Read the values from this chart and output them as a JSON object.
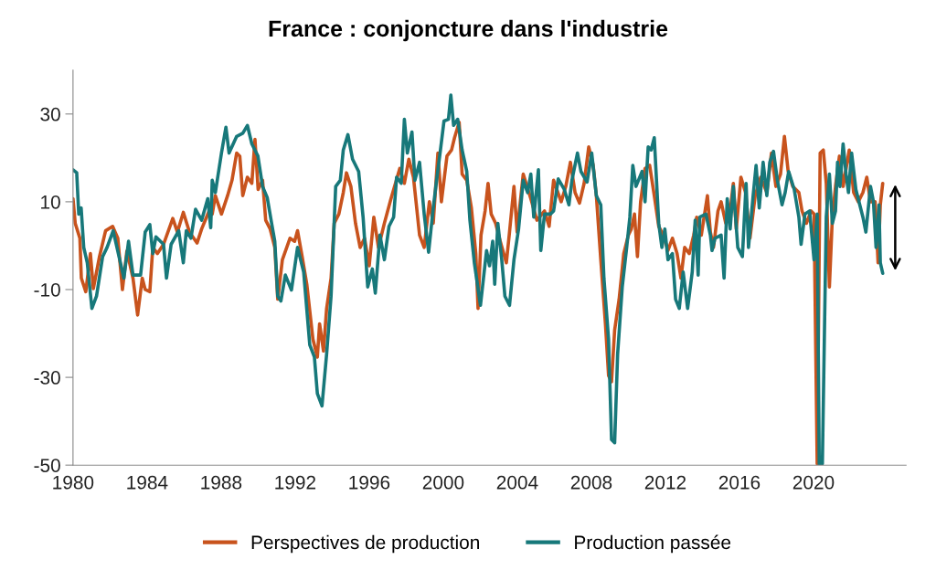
{
  "chart_data": {
    "type": "line",
    "title": "France : conjoncture dans l'industrie",
    "xlim": [
      1980,
      2025
    ],
    "xticks": [
      1980,
      1984,
      1988,
      1992,
      1996,
      2000,
      2004,
      2008,
      2012,
      2016,
      2020
    ],
    "ylim": [
      -50,
      40
    ],
    "yticks": [
      -50,
      -30,
      -10,
      10,
      30
    ],
    "grid": false,
    "legend": "bottom",
    "series": [
      {
        "name": "Perspectives de production",
        "color": "#c8531d",
        "x": [
          1980.0,
          1980.12,
          1980.37,
          1980.45,
          1980.69,
          1980.94,
          1981.1,
          1981.43,
          1981.76,
          1982.14,
          1982.42,
          1982.67,
          1982.91,
          1983.24,
          1983.49,
          1983.74,
          1983.9,
          1984.15,
          1984.31,
          1984.56,
          1984.89,
          1985.39,
          1985.64,
          1985.96,
          1986.29,
          1986.7,
          1986.95,
          1987.36,
          1987.52,
          1987.69,
          1988.02,
          1988.35,
          1988.59,
          1988.84,
          1989.01,
          1989.17,
          1989.42,
          1989.66,
          1989.83,
          1990.0,
          1990.24,
          1990.41,
          1990.65,
          1990.9,
          1991.06,
          1991.31,
          1991.72,
          1991.97,
          1992.13,
          1992.38,
          1992.63,
          1992.96,
          1993.2,
          1993.32,
          1993.53,
          1993.7,
          1993.94,
          1994.11,
          1994.36,
          1994.6,
          1994.77,
          1995.01,
          1995.26,
          1995.51,
          1995.75,
          1996.0,
          1996.25,
          1996.5,
          1996.82,
          1997.15,
          1997.65,
          1997.9,
          1998.14,
          1998.39,
          1998.72,
          1998.97,
          1999.25,
          1999.46,
          1999.71,
          1999.9,
          2000.2,
          2000.45,
          2000.61,
          2000.86,
          2001.02,
          2001.27,
          2001.52,
          2001.76,
          2001.88,
          2002.04,
          2002.26,
          2002.42,
          2002.59,
          2002.83,
          2003.08,
          2003.41,
          2003.58,
          2003.82,
          2003.99,
          2004.32,
          2004.73,
          2005.06,
          2005.47,
          2005.72,
          2005.96,
          2006.37,
          2006.62,
          2006.87,
          2007.12,
          2007.36,
          2007.61,
          2007.86,
          2008.1,
          2008.27,
          2008.51,
          2008.76,
          2008.93,
          2009.09,
          2009.26,
          2009.5,
          2009.75,
          2010.0,
          2010.16,
          2010.33,
          2010.49,
          2010.66,
          2010.9,
          2011.15,
          2011.4,
          2011.64,
          2011.89,
          2012.14,
          2012.38,
          2012.63,
          2012.84,
          2013.04,
          2013.29,
          2013.53,
          2013.69,
          2013.94,
          2014.27,
          2014.43,
          2014.6,
          2014.84,
          2015.01,
          2015.26,
          2015.5,
          2015.67,
          2015.83,
          2016.08,
          2016.33,
          2016.57,
          2016.85,
          2017.15,
          2017.48,
          2017.73,
          2017.97,
          2018.22,
          2018.43,
          2018.63,
          2018.88,
          2019.21,
          2019.38,
          2019.62,
          2019.87,
          2020.03,
          2020.2,
          2020.36,
          2020.53,
          2020.69,
          2020.86,
          2021.02,
          2021.19,
          2021.4,
          2021.6,
          2021.93,
          2022.17,
          2022.42,
          2022.67,
          2022.88,
          2023.08,
          2023.33,
          2023.49,
          2023.61,
          2023.74
        ],
        "values": [
          10.7,
          5.1,
          1.7,
          -7.4,
          -10.5,
          -1.8,
          -9.8,
          -2.5,
          3.4,
          4.4,
          1.7,
          -10,
          -1.2,
          -7.4,
          -15.8,
          -7.4,
          -10,
          -10.5,
          -0.4,
          -1.8,
          0.3,
          6.2,
          3.1,
          7.6,
          3.1,
          0.6,
          3.8,
          8,
          7.2,
          11.4,
          7.2,
          11.4,
          14.9,
          21.1,
          20.4,
          11.4,
          15.6,
          14.2,
          24.2,
          12.8,
          14.9,
          5.8,
          3.8,
          -0.4,
          -12.2,
          -3.2,
          1.7,
          1,
          3.4,
          -2.5,
          -8.8,
          -21.3,
          -25.4,
          -17.8,
          -24,
          -14.3,
          -7.4,
          5.1,
          7.2,
          12.1,
          16.6,
          13.5,
          5.1,
          -0.4,
          1.7,
          -4.6,
          6.5,
          -0.4,
          5.1,
          10.3,
          17.6,
          14.2,
          19.7,
          15.6,
          2.4,
          -0.4,
          10,
          5.1,
          21.1,
          10,
          20.4,
          21.8,
          24.6,
          28.1,
          16.3,
          14.9,
          8.6,
          -1.8,
          -14.3,
          2.4,
          7.9,
          14.2,
          7.2,
          5.1,
          1,
          -3.9,
          3.1,
          13.5,
          3.1,
          16.3,
          10.7,
          5.8,
          7.9,
          4.4,
          14.9,
          10,
          13.5,
          19,
          12.1,
          9.7,
          14.2,
          22.5,
          18.3,
          11.4,
          -3.2,
          -17.8,
          -29.6,
          -31,
          -19.2,
          -12.2,
          -1.8,
          2.4,
          3.8,
          7.2,
          -2.5,
          10,
          17.6,
          18.3,
          11.4,
          4.4,
          2.4,
          -1.1,
          1.7,
          -1.8,
          -7.4,
          -0.4,
          -1.8,
          2.4,
          6.5,
          2.4,
          11.4,
          3.1,
          -0.4,
          7.9,
          10,
          5.1,
          7.9,
          14.2,
          3.8,
          15.6,
          12.1,
          1.7,
          11.4,
          15.6,
          12.1,
          21.1,
          13.5,
          16.3,
          24.9,
          17,
          13.5,
          12.1,
          7.9,
          5.1,
          7.9,
          7.2,
          -49.7,
          21.1,
          21.8,
          14.2,
          -9.4,
          6.5,
          13.5,
          20.4,
          13.5,
          21.8,
          12.1,
          10,
          12.1,
          15.6,
          10,
          10,
          -3.9,
          9.3,
          14.2
        ]
      },
      {
        "name": "Production passée",
        "color": "#17787a",
        "x": [
          1980.0,
          1980.2,
          1980.31,
          1980.44,
          1980.58,
          1980.77,
          1981.02,
          1981.27,
          1981.6,
          1981.84,
          1982.17,
          1982.75,
          1983.0,
          1983.24,
          1983.65,
          1983.9,
          1984.15,
          1984.31,
          1984.48,
          1984.89,
          1985.05,
          1985.3,
          1985.71,
          1985.96,
          1986.12,
          1986.37,
          1986.62,
          1986.95,
          1987.28,
          1987.44,
          1987.52,
          1987.69,
          1988.02,
          1988.26,
          1988.43,
          1988.84,
          1989.17,
          1989.42,
          1989.66,
          1989.99,
          1990.24,
          1990.49,
          1990.73,
          1990.9,
          1991.06,
          1991.23,
          1991.47,
          1991.8,
          1992.13,
          1992.46,
          1992.79,
          1993.04,
          1993.2,
          1993.45,
          1993.7,
          1993.94,
          1994.19,
          1994.44,
          1994.6,
          1994.85,
          1995.1,
          1995.43,
          1995.67,
          1995.92,
          1996.17,
          1996.33,
          1996.58,
          1996.82,
          1997.07,
          1997.32,
          1997.48,
          1997.73,
          1997.9,
          1998.06,
          1998.31,
          1998.47,
          1998.72,
          1998.97,
          1999.21,
          1999.46,
          1999.62,
          1999.87,
          2000.04,
          2000.28,
          2000.41,
          2000.56,
          2000.78,
          2001.02,
          2001.27,
          2001.44,
          2001.68,
          2002.01,
          2002.34,
          2002.5,
          2002.67,
          2002.78,
          2002.95,
          2003.16,
          2003.33,
          2003.58,
          2003.82,
          2004.07,
          2004.32,
          2004.56,
          2004.73,
          2004.89,
          2005.14,
          2005.27,
          2005.47,
          2005.8,
          2005.96,
          2006.21,
          2006.54,
          2006.79,
          2006.95,
          2007.25,
          2007.44,
          2007.77,
          2008.02,
          2008.27,
          2008.51,
          2008.68,
          2008.93,
          2009.09,
          2009.26,
          2009.42,
          2009.67,
          2009.91,
          2010.08,
          2010.24,
          2010.41,
          2010.74,
          2010.9,
          2011.07,
          2011.23,
          2011.4,
          2011.64,
          2011.81,
          2011.97,
          2012.14,
          2012.38,
          2012.55,
          2012.75,
          2012.96,
          2013.2,
          2013.45,
          2013.61,
          2013.77,
          2013.86,
          2014.19,
          2014.43,
          2014.52,
          2014.68,
          2015.01,
          2015.17,
          2015.34,
          2015.5,
          2015.67,
          2015.91,
          2016.16,
          2016.36,
          2016.49,
          2016.74,
          2016.9,
          2017.07,
          2017.28,
          2017.48,
          2017.64,
          2017.84,
          2018.05,
          2018.3,
          2018.47,
          2018.66,
          2018.96,
          2019.21,
          2019.33,
          2019.54,
          2019.79,
          2020.03,
          2020.2,
          2020.31,
          2020.48,
          2020.69,
          2020.86,
          2021.02,
          2021.19,
          2021.3,
          2021.43,
          2021.6,
          2021.76,
          2021.89,
          2022.06,
          2022.29,
          2022.5,
          2022.67,
          2022.83,
          2023.08,
          2023.24,
          2023.38,
          2023.54,
          2023.61,
          2023.74
        ],
        "values": [
          17.3,
          16.6,
          7.2,
          8.6,
          -0.4,
          -3.9,
          -14.3,
          -11.5,
          -2.5,
          -0.4,
          3.4,
          -7.4,
          1,
          -6.7,
          -6.7,
          3.1,
          4.8,
          -1.8,
          2,
          0.3,
          -7.4,
          0.3,
          3.4,
          -3.9,
          3.4,
          1.7,
          8.3,
          5.8,
          10.7,
          4.1,
          14.9,
          12.1,
          21.1,
          27,
          21.1,
          24.9,
          25.6,
          27.4,
          23.2,
          20.4,
          13.5,
          11,
          5.1,
          1,
          -11.5,
          -12.6,
          -6.7,
          -10.1,
          -0.4,
          -6,
          -22.6,
          -25.4,
          -33.7,
          -36.5,
          -24.7,
          -11.5,
          13.5,
          14.9,
          21.8,
          25.3,
          19.7,
          16.9,
          6.5,
          -9.4,
          -5.3,
          -10.8,
          2.4,
          -3.2,
          4.4,
          6.5,
          15.6,
          14.2,
          28.8,
          21.1,
          25.9,
          14.9,
          19,
          7.2,
          -1.5,
          8.6,
          14.2,
          22.5,
          28.4,
          28.8,
          34.3,
          27.4,
          28.8,
          21.8,
          16.9,
          5.8,
          -3.9,
          -13.6,
          -1.1,
          -4.6,
          1,
          -8.8,
          5.1,
          -3.2,
          -11.5,
          -13.6,
          -3.2,
          3.8,
          14.9,
          12.1,
          16.3,
          6.5,
          17.3,
          -1.1,
          7.2,
          7.2,
          7.9,
          15.2,
          12.8,
          9.3,
          14.9,
          21.1,
          16.9,
          14.5,
          21.1,
          11.4,
          9.3,
          -7.4,
          -21.3,
          -44.2,
          -44.9,
          -24.7,
          -9.4,
          -0.4,
          6.5,
          18.3,
          13.5,
          16.9,
          10,
          22.5,
          21.8,
          24.6,
          5.1,
          -0.4,
          3.8,
          -3.2,
          -1.8,
          -12.2,
          -14.3,
          -6,
          -14.3,
          -6,
          5.8,
          -6.7,
          6.5,
          7.2,
          2.4,
          -1.1,
          1.7,
          2.4,
          -7.4,
          10.7,
          3.8,
          13.5,
          -0.4,
          -2.5,
          14.2,
          -0.4,
          11.4,
          18.3,
          8.6,
          19,
          11.4,
          19,
          21.5,
          14.9,
          9.3,
          12.1,
          16.9,
          12.8,
          6.5,
          0.3,
          7.2,
          7.9,
          -3.2,
          7.2,
          -49.7,
          -49.7,
          6.5,
          16.3,
          5.1,
          7.9,
          19,
          13.5,
          23.2,
          16.3,
          12.1,
          21.1,
          12.8,
          9.3,
          6.5,
          3.1,
          13.5,
          10,
          -0.4,
          9.3,
          -3.9,
          -6.3
        ]
      }
    ]
  }
}
